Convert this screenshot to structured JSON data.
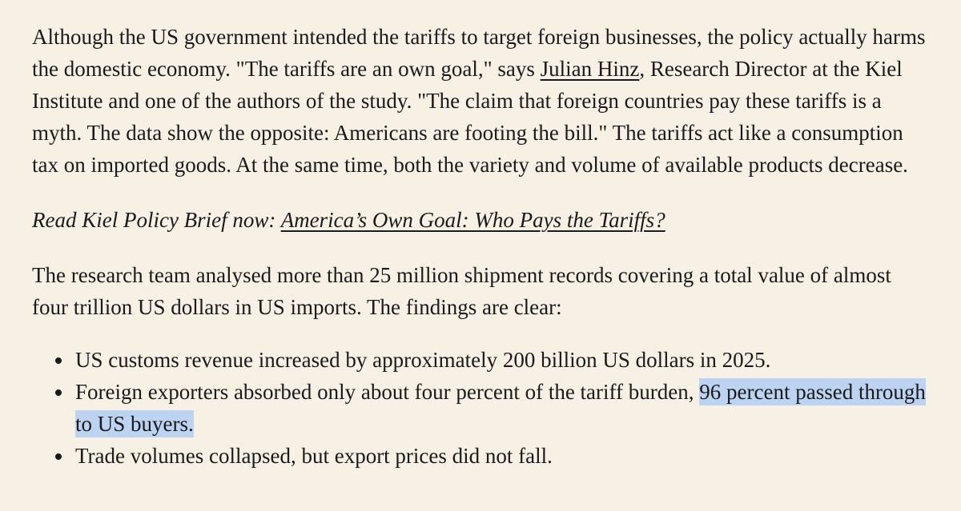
{
  "page": {
    "background_color": "#f7f1e5",
    "text_color": "#1a1a1a",
    "highlight_color": "#bcd4f2"
  },
  "article": {
    "paragraph_intro": {
      "part1": "Although the US government intended the tariffs to target foreign businesses, the policy actually harms the domestic economy. \"The tariffs are an own goal,\" says ",
      "link_julian_hinz": "Julian Hinz",
      "part2": ", Research Director at the Kiel Institute and one of the authors of the study. \"The claim that foreign countries pay these tariffs is a myth. The data show the opposite: Americans are footing the bill.\" The tariffs act like a consumption tax on imported goods. At the same time, both the variety and volume of available products decrease."
    },
    "paragraph_policy_brief": {
      "lead_in": "Read Kiel Policy Brief now: ",
      "link_policy_brief": "America’s Own Goal: Who Pays the Tariffs?"
    },
    "paragraph_findings": "The research team analysed more than 25 million shipment records covering a total value of almost four trillion US dollars in US imports. The findings are clear:",
    "bullets": {
      "item1": "US customs revenue increased by approximately 200 billion US dollars in 2025.",
      "item2_part1": "Foreign exporters absorbed only about four percent of the tariff burden, ",
      "item2_highlight": "96 percent passed through to US buyers.",
      "item3": "Trade volumes collapsed, but export prices did not fall."
    }
  }
}
